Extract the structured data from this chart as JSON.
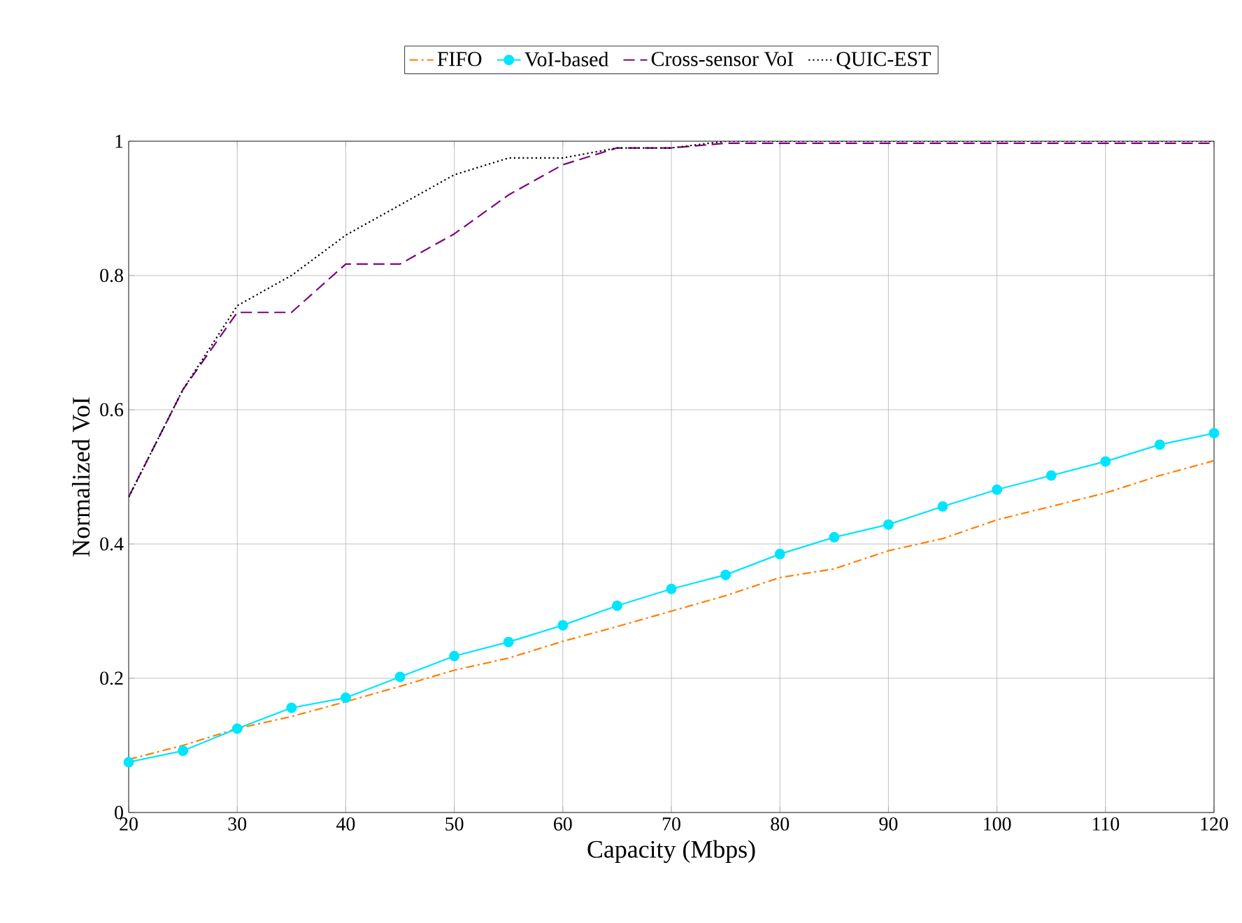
{
  "chart_data": {
    "type": "line",
    "xlabel": "Capacity (Mbps)",
    "ylabel": "Normalized VoI",
    "x": [
      20,
      25,
      30,
      35,
      40,
      45,
      50,
      55,
      60,
      65,
      70,
      75,
      80,
      85,
      90,
      95,
      100,
      105,
      110,
      115,
      120
    ],
    "series": [
      {
        "name": "FIFO",
        "color": "#ff7f00",
        "line_style": "dashdot",
        "marker": "none",
        "values": [
          0.079,
          0.1,
          0.125,
          0.143,
          0.165,
          0.188,
          0.212,
          0.23,
          0.255,
          0.277,
          0.3,
          0.323,
          0.35,
          0.363,
          0.39,
          0.408,
          0.436,
          0.456,
          0.476,
          0.502,
          0.524
        ]
      },
      {
        "name": "VoI-based",
        "color": "#00e5ff",
        "line_style": "solid",
        "marker": "circle",
        "values": [
          0.075,
          0.092,
          0.125,
          0.156,
          0.171,
          0.202,
          0.233,
          0.254,
          0.279,
          0.308,
          0.333,
          0.354,
          0.385,
          0.41,
          0.429,
          0.456,
          0.481,
          0.502,
          0.523,
          0.548,
          0.565
        ]
      },
      {
        "name": "Cross-sensor VoI",
        "color": "#800080",
        "line_style": "dashed",
        "marker": "none",
        "values": [
          0.47,
          0.63,
          0.745,
          0.745,
          0.817,
          0.817,
          0.862,
          0.92,
          0.965,
          0.99,
          0.99,
          0.997,
          0.997,
          0.997,
          0.997,
          0.997,
          0.997,
          0.997,
          0.997,
          0.997,
          0.997
        ]
      },
      {
        "name": "QUIC-EST",
        "color": "#000000",
        "line_style": "dotted",
        "marker": "none",
        "values": [
          0.47,
          0.63,
          0.755,
          0.8,
          0.86,
          0.905,
          0.95,
          0.975,
          0.975,
          0.99,
          0.99,
          1.0,
          1.0,
          1.0,
          1.0,
          1.0,
          1.0,
          1.0,
          1.0,
          1.0,
          1.0
        ]
      }
    ],
    "xlim": [
      20,
      120
    ],
    "ylim": [
      0,
      1
    ],
    "xticks": [
      20,
      30,
      40,
      50,
      60,
      70,
      80,
      90,
      100,
      110,
      120
    ],
    "yticks": [
      0,
      0.2,
      0.4,
      0.6,
      0.8,
      1
    ],
    "grid": true,
    "legend": "top"
  }
}
